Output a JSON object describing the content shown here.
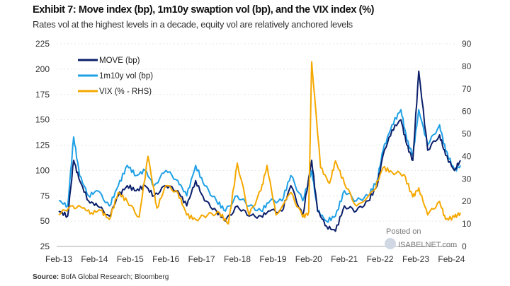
{
  "title": "Exhibit 7: Move index (bp), 1m10y swaption vol (bp), and the VIX index (%)",
  "subtitle": "Rates vol at the highest levels in a decade, equity vol are relatively anchored levels",
  "source_label": "Source:",
  "source_text": "BofA Global Research; Bloomberg",
  "watermark": {
    "line1": "Posted on",
    "line2": "ISABELNET.com"
  },
  "chart_data": {
    "type": "line",
    "x_ticks": [
      "Feb-13",
      "Feb-14",
      "Feb-15",
      "Feb-16",
      "Feb-17",
      "Feb-18",
      "Feb-19",
      "Feb-20",
      "Feb-21",
      "Feb-22",
      "Feb-23",
      "Feb-24"
    ],
    "y_left": {
      "lim": [
        25,
        225
      ],
      "ticks": [
        25,
        50,
        75,
        100,
        125,
        150,
        175,
        200,
        225
      ]
    },
    "y_right": {
      "lim": [
        0,
        90
      ],
      "ticks": [
        0,
        10,
        20,
        30,
        40,
        50,
        60,
        70,
        80,
        90
      ]
    },
    "grid": true,
    "legend": "top-left",
    "series": [
      {
        "name": "MOVE (bp)",
        "axis": "left",
        "color": "#0b1f6b",
        "points": [
          [
            "2013-02",
            60
          ],
          [
            "2013-05",
            55
          ],
          [
            "2013-07",
            110
          ],
          [
            "2013-09",
            90
          ],
          [
            "2013-12",
            70
          ],
          [
            "2014-03",
            65
          ],
          [
            "2014-07",
            55
          ],
          [
            "2014-10",
            75
          ],
          [
            "2015-01",
            85
          ],
          [
            "2015-04",
            80
          ],
          [
            "2015-07",
            85
          ],
          [
            "2015-10",
            75
          ],
          [
            "2016-02",
            85
          ],
          [
            "2016-06",
            80
          ],
          [
            "2016-09",
            65
          ],
          [
            "2016-12",
            90
          ],
          [
            "2017-03",
            70
          ],
          [
            "2017-07",
            60
          ],
          [
            "2017-10",
            50
          ],
          [
            "2018-02",
            65
          ],
          [
            "2018-06",
            55
          ],
          [
            "2018-10",
            55
          ],
          [
            "2019-01",
            60
          ],
          [
            "2019-05",
            60
          ],
          [
            "2019-08",
            85
          ],
          [
            "2019-12",
            55
          ],
          [
            "2020-03",
            110
          ],
          [
            "2020-05",
            60
          ],
          [
            "2020-08",
            45
          ],
          [
            "2020-11",
            40
          ],
          [
            "2021-02",
            65
          ],
          [
            "2021-06",
            60
          ],
          [
            "2021-10",
            70
          ],
          [
            "2022-01",
            85
          ],
          [
            "2022-03",
            115
          ],
          [
            "2022-06",
            140
          ],
          [
            "2022-09",
            150
          ],
          [
            "2022-11",
            125
          ],
          [
            "2023-01",
            110
          ],
          [
            "2023-03",
            198
          ],
          [
            "2023-06",
            120
          ],
          [
            "2023-10",
            135
          ],
          [
            "2023-12",
            115
          ],
          [
            "2024-03",
            100
          ],
          [
            "2024-05",
            110
          ]
        ]
      },
      {
        "name": "1m10y vol (bp)",
        "axis": "left",
        "color": "#1ea0e6",
        "points": [
          [
            "2013-02",
            70
          ],
          [
            "2013-05",
            65
          ],
          [
            "2013-07",
            133
          ],
          [
            "2013-09",
            95
          ],
          [
            "2013-12",
            75
          ],
          [
            "2014-03",
            80
          ],
          [
            "2014-07",
            65
          ],
          [
            "2014-10",
            85
          ],
          [
            "2015-01",
            105
          ],
          [
            "2015-04",
            95
          ],
          [
            "2015-07",
            100
          ],
          [
            "2015-10",
            85
          ],
          [
            "2016-02",
            100
          ],
          [
            "2016-06",
            90
          ],
          [
            "2016-09",
            75
          ],
          [
            "2016-12",
            105
          ],
          [
            "2017-03",
            85
          ],
          [
            "2017-07",
            70
          ],
          [
            "2017-10",
            60
          ],
          [
            "2018-02",
            75
          ],
          [
            "2018-06",
            65
          ],
          [
            "2018-10",
            60
          ],
          [
            "2019-01",
            70
          ],
          [
            "2019-05",
            70
          ],
          [
            "2019-08",
            95
          ],
          [
            "2019-12",
            70
          ],
          [
            "2020-03",
            100
          ],
          [
            "2020-05",
            60
          ],
          [
            "2020-08",
            50
          ],
          [
            "2020-11",
            55
          ],
          [
            "2021-02",
            80
          ],
          [
            "2021-06",
            70
          ],
          [
            "2021-10",
            75
          ],
          [
            "2022-01",
            90
          ],
          [
            "2022-03",
            120
          ],
          [
            "2022-06",
            145
          ],
          [
            "2022-09",
            160
          ],
          [
            "2022-11",
            130
          ],
          [
            "2023-01",
            115
          ],
          [
            "2023-03",
            160
          ],
          [
            "2023-06",
            125
          ],
          [
            "2023-10",
            145
          ],
          [
            "2023-12",
            120
          ],
          [
            "2024-03",
            100
          ],
          [
            "2024-05",
            105
          ]
        ]
      },
      {
        "name": "VIX (% - RHS)",
        "axis": "right",
        "color": "#f5a800",
        "points": [
          [
            "2013-02",
            14
          ],
          [
            "2013-06",
            18
          ],
          [
            "2013-10",
            17
          ],
          [
            "2014-01",
            15
          ],
          [
            "2014-04",
            16
          ],
          [
            "2014-07",
            12
          ],
          [
            "2014-10",
            24
          ],
          [
            "2015-01",
            20
          ],
          [
            "2015-05",
            13
          ],
          [
            "2015-08",
            40
          ],
          [
            "2015-11",
            17
          ],
          [
            "2016-02",
            27
          ],
          [
            "2016-06",
            24
          ],
          [
            "2016-09",
            14
          ],
          [
            "2016-12",
            12
          ],
          [
            "2017-04",
            14
          ],
          [
            "2017-08",
            15
          ],
          [
            "2017-11",
            10
          ],
          [
            "2018-02",
            37
          ],
          [
            "2018-06",
            14
          ],
          [
            "2018-10",
            25
          ],
          [
            "2018-12",
            36
          ],
          [
            "2019-03",
            14
          ],
          [
            "2019-08",
            24
          ],
          [
            "2019-12",
            13
          ],
          [
            "2020-02",
            15
          ],
          [
            "2020-03",
            82
          ],
          [
            "2020-06",
            35
          ],
          [
            "2020-09",
            28
          ],
          [
            "2020-11",
            38
          ],
          [
            "2021-02",
            28
          ],
          [
            "2021-06",
            18
          ],
          [
            "2021-12",
            25
          ],
          [
            "2022-03",
            35
          ],
          [
            "2022-06",
            33
          ],
          [
            "2022-10",
            32
          ],
          [
            "2023-01",
            22
          ],
          [
            "2023-03",
            26
          ],
          [
            "2023-06",
            14
          ],
          [
            "2023-10",
            20
          ],
          [
            "2023-12",
            12
          ],
          [
            "2024-03",
            13
          ],
          [
            "2024-05",
            15
          ]
        ]
      }
    ]
  }
}
